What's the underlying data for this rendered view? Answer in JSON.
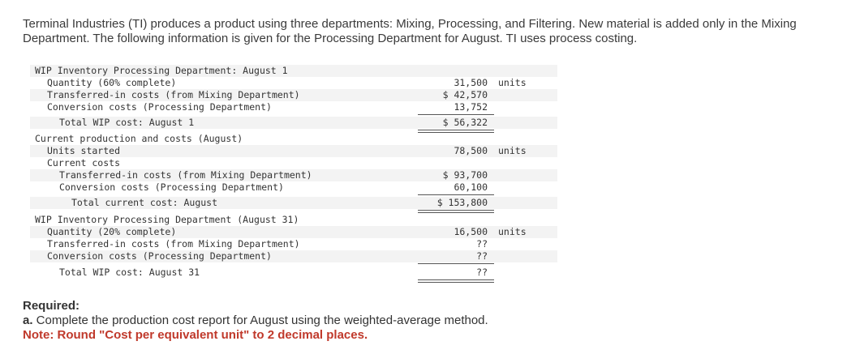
{
  "intro": "Terminal Industries (TI) produces a product using three departments: Mixing, Processing, and Filtering. New material is added only in the Mixing Department. The following information is given for the Processing Department for August. TI uses process costing.",
  "table": {
    "rows": [
      {
        "label": "WIP Inventory Processing Department: August 1",
        "amount": "",
        "unit": ""
      },
      {
        "label": "Quantity (60% complete)",
        "amount": "31,500",
        "unit": "units"
      },
      {
        "label": "Transferred-in costs (from Mixing Department)",
        "amount": "$ 42,570",
        "unit": ""
      },
      {
        "label": "Conversion costs (Processing Department)",
        "amount": "13,752",
        "unit": ""
      },
      {
        "label": "Total WIP cost: August 1",
        "amount": "$ 56,322",
        "unit": ""
      },
      {
        "label": "Current production and costs (August)",
        "amount": "",
        "unit": ""
      },
      {
        "label": "Units started",
        "amount": "78,500",
        "unit": "units"
      },
      {
        "label": "Current costs",
        "amount": "",
        "unit": ""
      },
      {
        "label": "Transferred-in costs (from Mixing Department)",
        "amount": "$ 93,700",
        "unit": ""
      },
      {
        "label": "Conversion costs (Processing Department)",
        "amount": "60,100",
        "unit": ""
      },
      {
        "label": "Total current cost: August",
        "amount": "$ 153,800",
        "unit": ""
      },
      {
        "label": "WIP Inventory Processing Department (August 31)",
        "amount": "",
        "unit": ""
      },
      {
        "label": "Quantity (20% complete)",
        "amount": "16,500",
        "unit": "units"
      },
      {
        "label": "Transferred-in costs (from Mixing Department)",
        "amount": "??",
        "unit": ""
      },
      {
        "label": "Conversion costs (Processing Department)",
        "amount": "??",
        "unit": ""
      },
      {
        "label": "Total WIP cost: August 31",
        "amount": "??",
        "unit": ""
      }
    ]
  },
  "required": {
    "title": "Required:",
    "part_letter": "a.",
    "part_text": " Complete the production cost report for August using the weighted-average method.",
    "note": "Note: Round \"Cost per equivalent unit\" to 2 decimal places."
  }
}
